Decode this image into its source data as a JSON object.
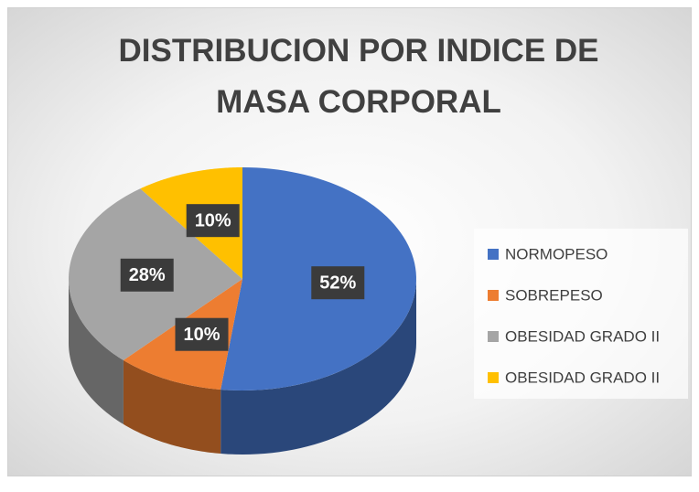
{
  "chart_data": {
    "type": "pie3d",
    "title": "DISTRIBUCION POR INDICE DE MASA CORPORAL",
    "categories": [
      "NORMOPESO",
      "SOBREPESO",
      "OBESIDAD GRADO II",
      "OBESIDAD GRADO II"
    ],
    "values": [
      52,
      10,
      28,
      10
    ],
    "value_labels": [
      "52%",
      "10%",
      "28%",
      "10%"
    ],
    "colors": [
      "#4472c4",
      "#ed7d31",
      "#a5a5a5",
      "#ffc000"
    ],
    "legend": "right"
  }
}
